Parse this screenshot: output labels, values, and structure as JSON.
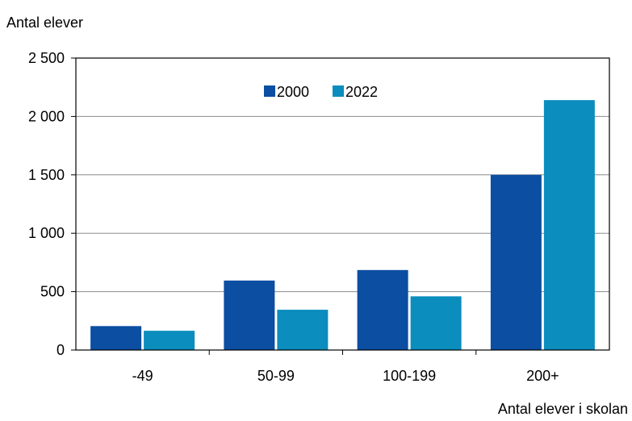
{
  "chart_data": {
    "type": "bar",
    "ylabel": "Antal elever",
    "xlabel": "Antal elever i skolan",
    "categories": [
      "-49",
      "50-99",
      "100-199",
      "200+"
    ],
    "series": [
      {
        "name": "2000",
        "color": "#0B4EA2",
        "values": [
          205,
          595,
          685,
          1500
        ]
      },
      {
        "name": "2022",
        "color": "#0B8DBD",
        "values": [
          165,
          345,
          460,
          2140
        ]
      }
    ],
    "ylim": [
      0,
      2500
    ],
    "yticks": [
      0,
      500,
      1000,
      1500,
      2000,
      2500
    ],
    "ytick_labels": [
      "0",
      "500",
      "1 000",
      "1 500",
      "2 000",
      "2 500"
    ],
    "grid": "horizontal",
    "legend_position": "top-center"
  }
}
